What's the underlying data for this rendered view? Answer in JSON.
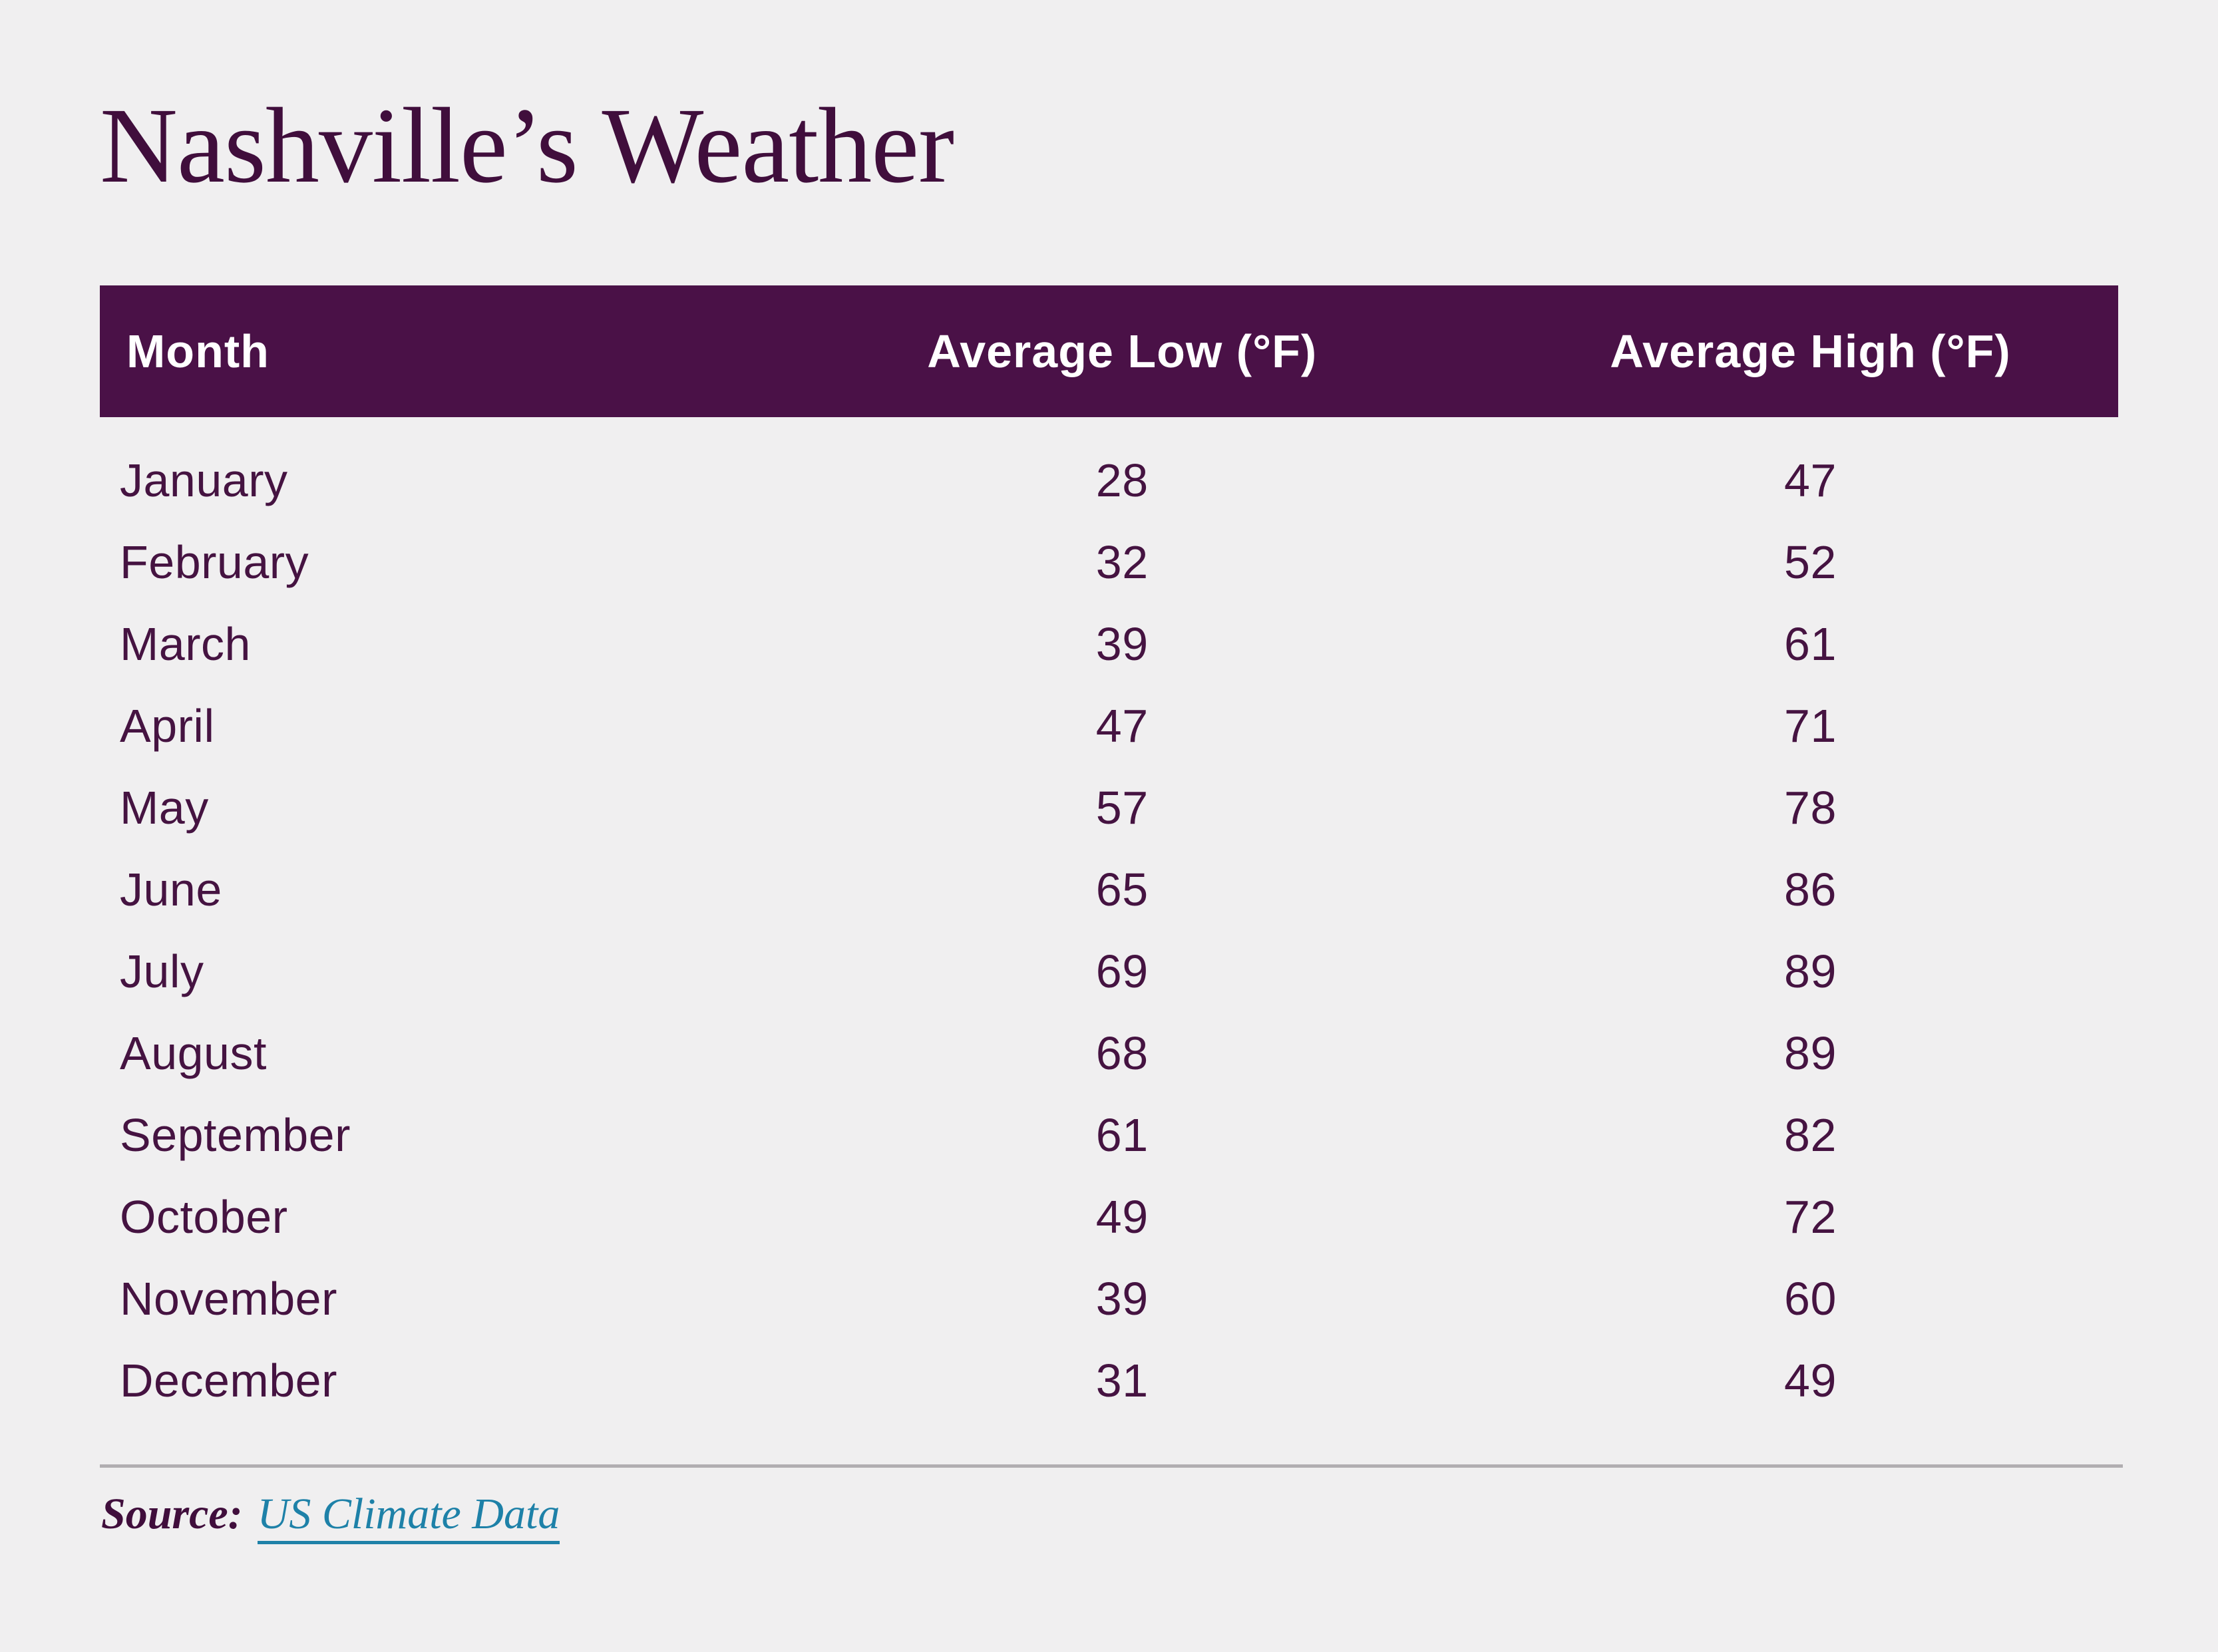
{
  "title": "Nashville’s Weather",
  "table": {
    "headers": [
      "Month",
      "Average Low (°F)",
      "Average High (°F)"
    ],
    "rows": [
      {
        "month": "January",
        "low": "28",
        "high": "47"
      },
      {
        "month": "February",
        "low": "32",
        "high": "52"
      },
      {
        "month": "March",
        "low": "39",
        "high": "61"
      },
      {
        "month": "April",
        "low": "47",
        "high": "71"
      },
      {
        "month": "May",
        "low": "57",
        "high": "78"
      },
      {
        "month": "June",
        "low": "65",
        "high": "86"
      },
      {
        "month": "July",
        "low": "69",
        "high": "89"
      },
      {
        "month": "August",
        "low": "68",
        "high": "89"
      },
      {
        "month": "September",
        "low": "61",
        "high": "82"
      },
      {
        "month": "October",
        "low": "49",
        "high": "72"
      },
      {
        "month": "November",
        "low": "39",
        "high": "60"
      },
      {
        "month": "December",
        "low": "31",
        "high": "49"
      }
    ]
  },
  "footer": {
    "source_label": "Source:",
    "source_link": "US Climate Data"
  },
  "colors": {
    "background": "#f0eff0",
    "header_band": "#4a1147",
    "header_text": "#ffffff",
    "body_text": "#451341",
    "title_text": "#400e3c",
    "link_teal": "#1e81a8",
    "divider_gray": "#b1aeb1"
  },
  "chart_data": {
    "type": "table",
    "title": "Nashville’s Weather",
    "columns": [
      "Month",
      "Average Low (°F)",
      "Average High (°F)"
    ],
    "categories": [
      "January",
      "February",
      "March",
      "April",
      "May",
      "June",
      "July",
      "August",
      "September",
      "October",
      "November",
      "December"
    ],
    "series": [
      {
        "name": "Average Low (°F)",
        "values": [
          28,
          32,
          39,
          47,
          57,
          65,
          69,
          68,
          61,
          49,
          39,
          31
        ]
      },
      {
        "name": "Average High (°F)",
        "values": [
          47,
          52,
          61,
          71,
          78,
          86,
          89,
          89,
          82,
          72,
          60,
          49
        ]
      }
    ],
    "source": "US Climate Data"
  }
}
